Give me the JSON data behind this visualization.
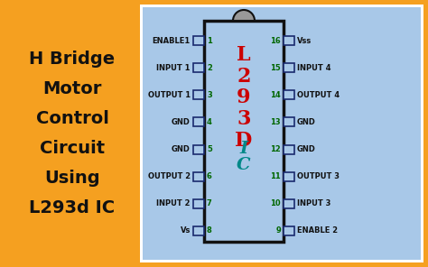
{
  "bg_color": "#F5A020",
  "ic_panel_color": "#A8C8E8",
  "ic_chip_color": "#A8C8E8",
  "ic_border_color": "#111111",
  "pin_box_edge": "#1a2a6e",
  "pin_box_face": "#A8C8E8",
  "white_border_color": "#ffffff",
  "title_lines": [
    "H Bridge",
    "Motor",
    "Control",
    "Circuit",
    "Using",
    "L293d IC"
  ],
  "title_color": "#111111",
  "title_fontsize": 14,
  "ic_label_chars": [
    "L",
    "2",
    "9",
    "3",
    "D"
  ],
  "ic_label_color": "#CC0000",
  "ic_label_fontsize": 16,
  "ic_sublabel": "IC",
  "ic_sublabel_color": "#008888",
  "ic_sublabel_fontsize": 14,
  "left_pins": [
    "ENABLE1",
    "INPUT 1",
    "OUTPUT 1",
    "GND",
    "GND",
    "OUTPUT 2",
    "INPUT 2",
    "Vs"
  ],
  "left_pin_nums": [
    "1",
    "2",
    "3",
    "4",
    "5",
    "6",
    "7",
    "8"
  ],
  "right_pins": [
    "Vss",
    "INPUT 4",
    "OUTPUT 4",
    "GND",
    "GND",
    "OUTPUT 3",
    "INPUT 3",
    "ENABLE 2"
  ],
  "right_pin_nums": [
    "16",
    "15",
    "14",
    "13",
    "12",
    "11",
    "10",
    "9"
  ],
  "pin_label_color": "#111111",
  "pin_num_color": "#006600",
  "pin_label_fontsize": 6.0,
  "pin_num_fontsize": 6.0,
  "notch_color": "#999999",
  "fig_w": 4.74,
  "fig_h": 2.96,
  "dpi": 100
}
